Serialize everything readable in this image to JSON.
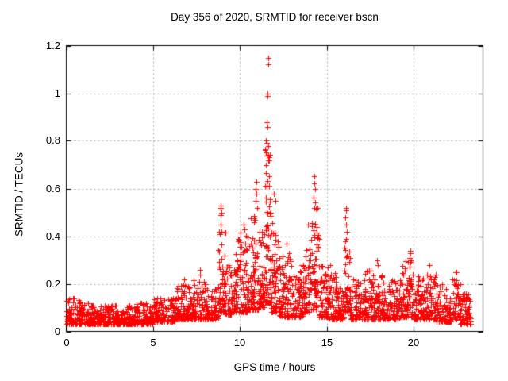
{
  "figure": {
    "title": "Day 356 of 2020, SRMTID for receiver bscn",
    "xlabel": "GPS time / hours",
    "ylabel": "SRMTID / TECUs",
    "background_color": "#ffffff",
    "axis_color": "#000000",
    "grid_color": "#a8a8a8",
    "text_color": "#000000"
  },
  "chart_data": {
    "type": "scatter",
    "title": "Day 356 of 2020, SRMTID for receiver bscn",
    "xlabel": "GPS time / hours",
    "ylabel": "SRMTID / TECUs",
    "xlim": [
      0,
      24
    ],
    "ylim": [
      0,
      1.2
    ],
    "x_tick_values": [
      0,
      5,
      10,
      15,
      20
    ],
    "x_tick_labels": [
      "0",
      "5",
      "10",
      "15",
      "20"
    ],
    "y_tick_values": [
      0,
      0.2,
      0.4,
      0.6,
      0.8,
      1.0,
      1.2
    ],
    "y_tick_labels": [
      "0",
      "0.2",
      "0.4",
      "0.6",
      "0.8",
      "1",
      "1.2"
    ],
    "grid": true,
    "grid_style": "dotted",
    "ticks_mirrored_inward": true,
    "legend": "none",
    "series": [
      {
        "name": "SRMTID",
        "marker": "plus",
        "marker_size_px": 7,
        "color": "#ff0000",
        "time_coverage_hours": [
          0.0,
          23.3
        ],
        "sampling": "dense noisy scatter (~2700 epochs)",
        "seed": 20200356,
        "peak_points": [
          [
            6.8,
            0.22
          ],
          [
            7.7,
            0.26
          ],
          [
            7.72,
            0.24
          ],
          [
            8.85,
            0.41
          ],
          [
            8.87,
            0.49
          ],
          [
            8.88,
            0.53
          ],
          [
            8.9,
            0.52
          ],
          [
            8.9,
            0.45
          ],
          [
            8.92,
            0.5
          ],
          [
            8.93,
            0.42
          ],
          [
            9.9,
            0.38
          ],
          [
            10.2,
            0.45
          ],
          [
            10.25,
            0.43
          ],
          [
            10.88,
            0.6
          ],
          [
            10.92,
            0.55
          ],
          [
            10.95,
            0.63
          ],
          [
            10.97,
            0.58
          ],
          [
            11.0,
            0.52
          ],
          [
            11.45,
            0.76
          ],
          [
            11.48,
            0.7
          ],
          [
            11.5,
            0.8
          ],
          [
            11.52,
            0.74
          ],
          [
            11.55,
            0.88
          ],
          [
            11.55,
            0.79
          ],
          [
            11.57,
            0.99
          ],
          [
            11.58,
            0.86
          ],
          [
            11.6,
            1.0
          ],
          [
            11.62,
            1.15
          ],
          [
            11.63,
            1.12
          ],
          [
            11.62,
            0.78
          ],
          [
            11.65,
            0.72
          ],
          [
            11.95,
            0.58
          ],
          [
            12.05,
            0.55
          ],
          [
            12.7,
            0.37
          ],
          [
            13.9,
            0.45
          ],
          [
            14.25,
            0.56
          ],
          [
            14.28,
            0.62
          ],
          [
            14.3,
            0.65
          ],
          [
            14.3,
            0.52
          ],
          [
            14.33,
            0.6
          ],
          [
            14.35,
            0.54
          ],
          [
            15.2,
            0.28
          ],
          [
            16.05,
            0.38
          ],
          [
            16.08,
            0.48
          ],
          [
            16.1,
            0.52
          ],
          [
            16.1,
            0.45
          ],
          [
            16.12,
            0.51
          ],
          [
            16.15,
            0.42
          ],
          [
            17.9,
            0.3
          ],
          [
            17.95,
            0.28
          ],
          [
            19.78,
            0.31
          ],
          [
            19.8,
            0.34
          ],
          [
            19.82,
            0.33
          ],
          [
            20.9,
            0.28
          ],
          [
            22.43,
            0.25
          ],
          [
            22.47,
            0.25
          ]
        ],
        "density_segments": [
          {
            "t0": 0.0,
            "t1": 1.0,
            "n": 110,
            "y_min": 0.03,
            "y_max": 0.14,
            "skew": 2.0
          },
          {
            "t0": 1.0,
            "t1": 2.0,
            "n": 105,
            "y_min": 0.03,
            "y_max": 0.12,
            "skew": 2.0
          },
          {
            "t0": 2.0,
            "t1": 3.0,
            "n": 105,
            "y_min": 0.03,
            "y_max": 0.11,
            "skew": 2.0
          },
          {
            "t0": 3.0,
            "t1": 4.0,
            "n": 105,
            "y_min": 0.03,
            "y_max": 0.11,
            "skew": 2.0
          },
          {
            "t0": 4.0,
            "t1": 5.0,
            "n": 105,
            "y_min": 0.03,
            "y_max": 0.12,
            "skew": 2.0
          },
          {
            "t0": 5.0,
            "t1": 6.3,
            "n": 135,
            "y_min": 0.04,
            "y_max": 0.14,
            "skew": 2.0
          },
          {
            "t0": 6.3,
            "t1": 7.3,
            "n": 110,
            "y_min": 0.05,
            "y_max": 0.2,
            "skew": 2.2
          },
          {
            "t0": 7.3,
            "t1": 8.1,
            "n": 90,
            "y_min": 0.05,
            "y_max": 0.22,
            "skew": 2.2
          },
          {
            "t0": 8.1,
            "t1": 8.75,
            "n": 70,
            "y_min": 0.05,
            "y_max": 0.18,
            "skew": 2.0
          },
          {
            "t0": 8.75,
            "t1": 9.15,
            "n": 55,
            "y_min": 0.08,
            "y_max": 0.42,
            "skew": 1.8
          },
          {
            "t0": 9.15,
            "t1": 9.75,
            "n": 70,
            "y_min": 0.07,
            "y_max": 0.28,
            "skew": 2.0
          },
          {
            "t0": 9.75,
            "t1": 10.45,
            "n": 90,
            "y_min": 0.08,
            "y_max": 0.42,
            "skew": 1.9
          },
          {
            "t0": 10.45,
            "t1": 11.1,
            "n": 85,
            "y_min": 0.09,
            "y_max": 0.5,
            "skew": 2.0
          },
          {
            "t0": 11.1,
            "t1": 11.42,
            "n": 45,
            "y_min": 0.1,
            "y_max": 0.42,
            "skew": 1.8
          },
          {
            "t0": 11.42,
            "t1": 11.8,
            "n": 75,
            "y_min": 0.12,
            "y_max": 0.78,
            "skew": 1.6
          },
          {
            "t0": 11.8,
            "t1": 12.25,
            "n": 60,
            "y_min": 0.08,
            "y_max": 0.5,
            "skew": 2.0
          },
          {
            "t0": 12.25,
            "t1": 13.0,
            "n": 90,
            "y_min": 0.06,
            "y_max": 0.33,
            "skew": 2.0
          },
          {
            "t0": 13.0,
            "t1": 13.65,
            "n": 75,
            "y_min": 0.06,
            "y_max": 0.3,
            "skew": 2.0
          },
          {
            "t0": 13.65,
            "t1": 14.1,
            "n": 55,
            "y_min": 0.08,
            "y_max": 0.35,
            "skew": 1.9
          },
          {
            "t0": 14.1,
            "t1": 14.55,
            "n": 60,
            "y_min": 0.09,
            "y_max": 0.52,
            "skew": 1.9
          },
          {
            "t0": 14.55,
            "t1": 15.1,
            "n": 65,
            "y_min": 0.06,
            "y_max": 0.28,
            "skew": 2.0
          },
          {
            "t0": 15.1,
            "t1": 15.6,
            "n": 60,
            "y_min": 0.05,
            "y_max": 0.26,
            "skew": 2.0
          },
          {
            "t0": 15.6,
            "t1": 16.0,
            "n": 48,
            "y_min": 0.05,
            "y_max": 0.2,
            "skew": 2.0
          },
          {
            "t0": 16.0,
            "t1": 16.35,
            "n": 45,
            "y_min": 0.08,
            "y_max": 0.4,
            "skew": 1.8
          },
          {
            "t0": 16.35,
            "t1": 17.2,
            "n": 90,
            "y_min": 0.05,
            "y_max": 0.22,
            "skew": 2.0
          },
          {
            "t0": 17.2,
            "t1": 18.2,
            "n": 105,
            "y_min": 0.05,
            "y_max": 0.27,
            "skew": 2.0
          },
          {
            "t0": 18.2,
            "t1": 19.3,
            "n": 110,
            "y_min": 0.05,
            "y_max": 0.22,
            "skew": 2.0
          },
          {
            "t0": 19.3,
            "t1": 20.0,
            "n": 80,
            "y_min": 0.06,
            "y_max": 0.3,
            "skew": 1.9
          },
          {
            "t0": 20.0,
            "t1": 20.6,
            "n": 65,
            "y_min": 0.05,
            "y_max": 0.24,
            "skew": 2.0
          },
          {
            "t0": 20.6,
            "t1": 21.3,
            "n": 75,
            "y_min": 0.05,
            "y_max": 0.25,
            "skew": 2.0
          },
          {
            "t0": 21.3,
            "t1": 22.2,
            "n": 95,
            "y_min": 0.04,
            "y_max": 0.2,
            "skew": 2.0
          },
          {
            "t0": 22.2,
            "t1": 22.7,
            "n": 55,
            "y_min": 0.05,
            "y_max": 0.23,
            "skew": 2.0
          },
          {
            "t0": 22.7,
            "t1": 23.3,
            "n": 65,
            "y_min": 0.03,
            "y_max": 0.16,
            "skew": 2.0
          }
        ]
      }
    ]
  }
}
